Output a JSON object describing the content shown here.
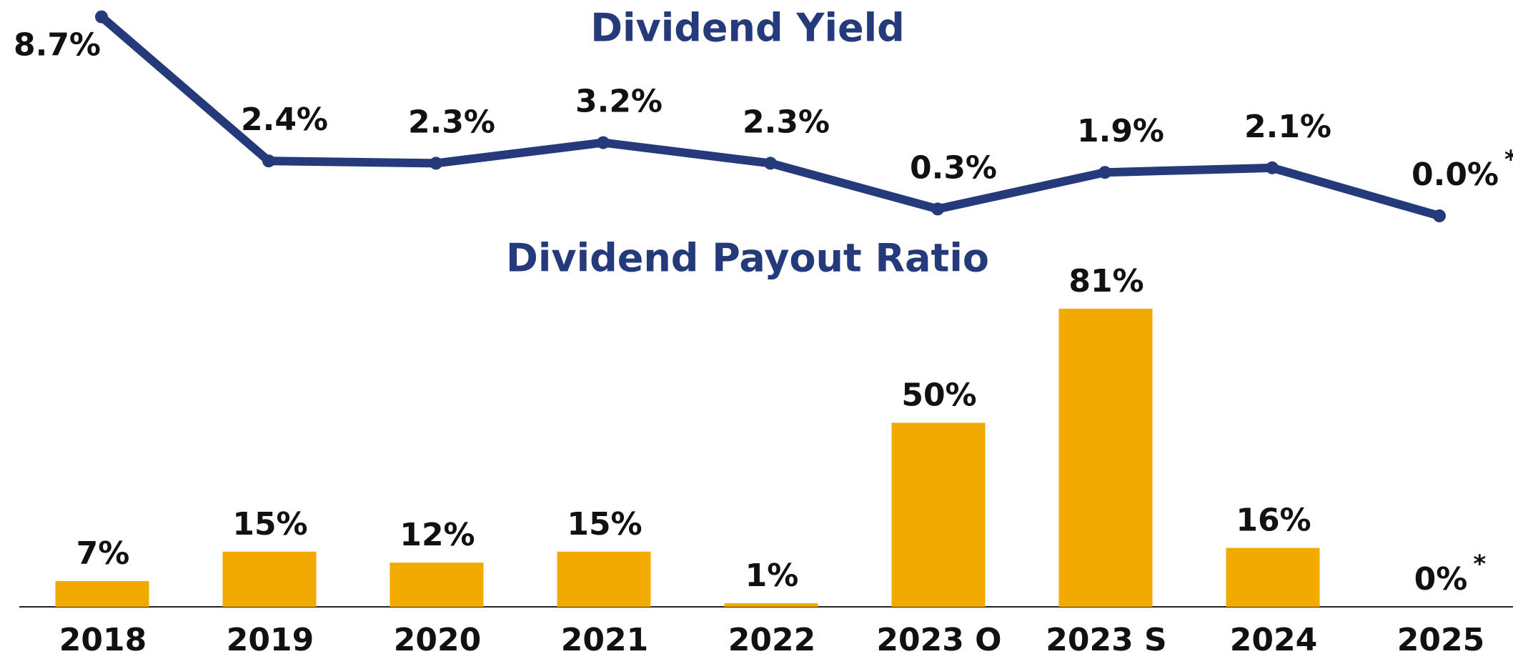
{
  "chart_data": [
    {
      "type": "line",
      "title": "Dividend Yield",
      "categories": [
        "2018",
        "2019",
        "2020",
        "2021",
        "2022",
        "2023 O",
        "2023 S",
        "2024",
        "2025"
      ],
      "values": [
        8.7,
        2.4,
        2.3,
        3.2,
        2.3,
        0.3,
        1.9,
        2.1,
        0.0
      ],
      "value_labels": [
        "8.7%",
        "2.4%",
        "2.3%",
        "3.2%",
        "2.3%",
        "0.3%",
        "1.9%",
        "2.1%",
        "0.0%"
      ],
      "annotation": "*",
      "color": "#253a7a"
    },
    {
      "type": "bar",
      "title": "Dividend Payout Ratio",
      "categories": [
        "2018",
        "2019",
        "2020",
        "2021",
        "2022",
        "2023 O",
        "2023 S",
        "2024",
        "2025"
      ],
      "values": [
        7,
        15,
        12,
        15,
        1,
        50,
        81,
        16,
        0
      ],
      "value_labels": [
        "7%",
        "15%",
        "12%",
        "15%",
        "1%",
        "50%",
        "81%",
        "16%",
        "0%"
      ],
      "annotation": "*",
      "color": "#f2a900"
    }
  ]
}
